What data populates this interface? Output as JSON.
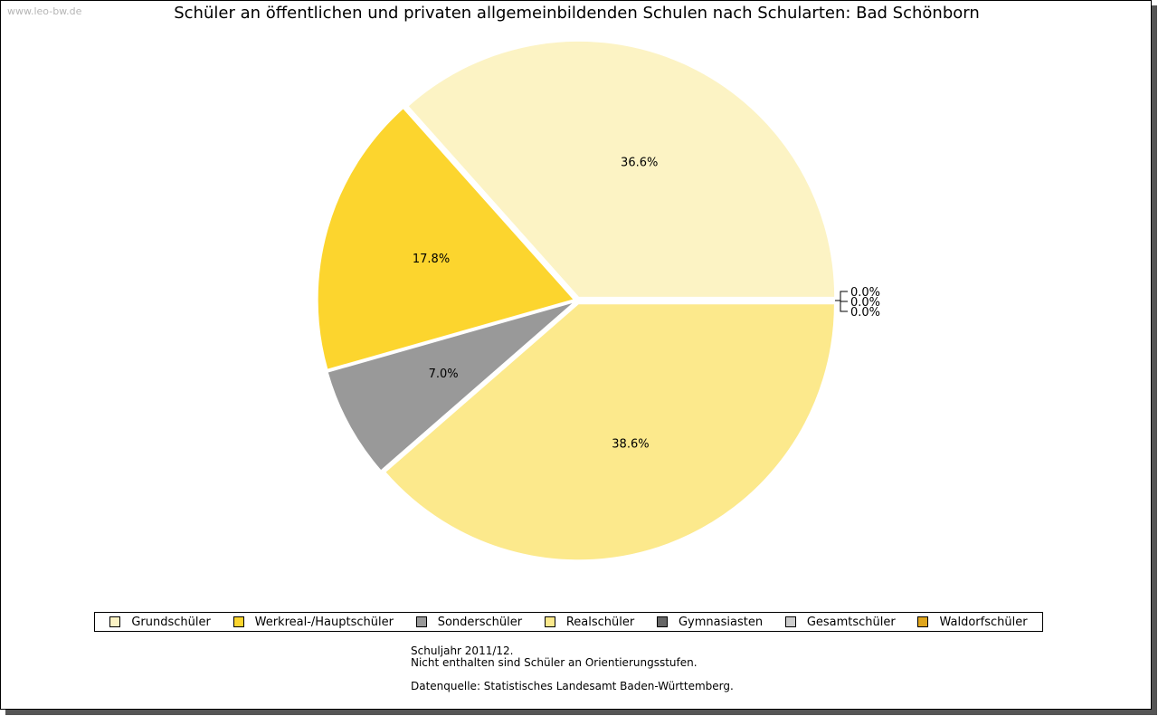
{
  "watermark": "www.leo-bw.de",
  "chart_data": {
    "type": "pie",
    "title": "Schüler an öffentlichen und privaten allgemeinbildenden Schulen nach Schularten: Bad Schönborn",
    "slices": [
      {
        "name": "Grundschüler",
        "value": 36.6,
        "label": "36.6%",
        "color": "#fcf3c4"
      },
      {
        "name": "Werkreal-/Hauptschüler",
        "value": 17.8,
        "label": "17.8%",
        "color": "#fcd52e"
      },
      {
        "name": "Sonderschüler",
        "value": 7.0,
        "label": "7.0%",
        "color": "#999999"
      },
      {
        "name": "Realschüler",
        "value": 38.6,
        "label": "38.6%",
        "color": "#fce98c"
      },
      {
        "name": "Gymnasiasten",
        "value": 0.0,
        "label": "0.0%",
        "color": "#666666"
      },
      {
        "name": "Gesamtschüler",
        "value": 0.0,
        "label": "0.0%",
        "color": "#cccccc"
      },
      {
        "name": "Waldorfschüler",
        "value": 0.0,
        "label": "0.0%",
        "color": "#dfa51c"
      }
    ],
    "legend": [
      {
        "name": "Grundschüler",
        "color": "#fcf3c4"
      },
      {
        "name": "Werkreal-/Hauptschüler",
        "color": "#fcd52e"
      },
      {
        "name": "Sonderschüler",
        "color": "#999999"
      },
      {
        "name": "Realschüler",
        "color": "#fce98c"
      },
      {
        "name": "Gymnasiasten",
        "color": "#666666"
      },
      {
        "name": "Gesamtschüler",
        "color": "#cccccc"
      },
      {
        "name": "Waldorfschüler",
        "color": "#dfa51c"
      }
    ],
    "legend_position": "bottom"
  },
  "notes": {
    "line1": "Schuljahr 2011/12.",
    "line2": "Nicht enthalten sind Schüler an Orientierungsstufen.",
    "source": "Datenquelle: Statistisches Landesamt Baden-Württemberg."
  }
}
